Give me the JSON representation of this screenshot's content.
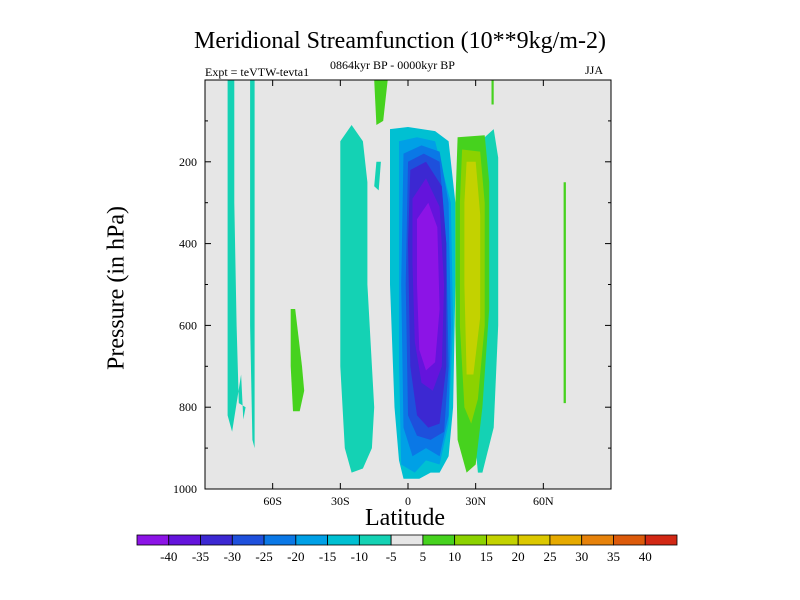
{
  "figure": {
    "title": "Meridional Streamfunction (10**9kg/m-2)",
    "period": "0864kyr BP - 0000kyr BP",
    "expt": "Expt = teVTW-tevta1",
    "season": "JJA"
  },
  "chart_data": {
    "type": "heatmap",
    "title": "Meridional Streamfunction (10**9kg/m-2)",
    "xlabel": "Latitude",
    "ylabel": "Pressure (in hPa)",
    "xlim": [
      -90,
      90
    ],
    "ylim": [
      1000,
      0
    ],
    "x_ticks": [
      {
        "value": -60,
        "label": "60S"
      },
      {
        "value": -30,
        "label": "30S"
      },
      {
        "value": 0,
        "label": "0"
      },
      {
        "value": 30,
        "label": "30N"
      },
      {
        "value": 60,
        "label": "60N"
      }
    ],
    "y_ticks": [
      {
        "value": 200,
        "label": "200"
      },
      {
        "value": 400,
        "label": "400"
      },
      {
        "value": 600,
        "label": "600"
      },
      {
        "value": 800,
        "label": "800"
      },
      {
        "value": 1000,
        "label": "1000"
      }
    ],
    "colorbar": {
      "levels": [
        -40,
        -35,
        -30,
        -25,
        -20,
        -15,
        -10,
        -5,
        5,
        10,
        15,
        20,
        25,
        30,
        35,
        40
      ],
      "colors": [
        "#8c14e6",
        "#6414dc",
        "#3c28d2",
        "#1e50dc",
        "#0a78e6",
        "#00a0e6",
        "#00c0d2",
        "#14d2b4",
        "#e6e6e6",
        "#46d21e",
        "#8cd200",
        "#c3d200",
        "#dcc800",
        "#e6aa00",
        "#e6820a",
        "#dc5a0a",
        "#d22814"
      ],
      "label_values": [
        "-40",
        "-35",
        "-30",
        "-25",
        "-20",
        "-15",
        "-10",
        "-5",
        "5",
        "10",
        "15",
        "20",
        "25",
        "30",
        "35",
        "40"
      ]
    },
    "regions": [
      {
        "name": "upper-band-1",
        "level": -5,
        "pts": [
          [
            -80,
            0
          ],
          [
            -77,
            0
          ],
          [
            -77,
            300
          ],
          [
            -76,
            600
          ],
          [
            -75,
            790
          ],
          [
            -72,
            800
          ],
          [
            -73,
            830
          ],
          [
            -74,
            720
          ],
          [
            -78,
            860
          ],
          [
            -80,
            820
          ],
          [
            -80,
            400
          ]
        ]
      },
      {
        "name": "upper-band-2",
        "level": -5,
        "pts": [
          [
            -70,
            0
          ],
          [
            -68,
            0
          ],
          [
            -68,
            400
          ],
          [
            -68,
            800
          ],
          [
            -68,
            900
          ],
          [
            -69,
            880
          ],
          [
            -70,
            600
          ]
        ]
      },
      {
        "name": "southern-cell",
        "level": -5,
        "pts": [
          [
            -30,
            150
          ],
          [
            -25,
            110
          ],
          [
            -20,
            150
          ],
          [
            -18,
            250
          ],
          [
            -18,
            500
          ],
          [
            -15,
            800
          ],
          [
            -16,
            900
          ],
          [
            -20,
            950
          ],
          [
            -25,
            960
          ],
          [
            -28,
            900
          ],
          [
            -30,
            700
          ],
          [
            -30,
            400
          ]
        ]
      },
      {
        "name": "south-patch-a",
        "level": -5,
        "pts": [
          [
            -14,
            200
          ],
          [
            -12,
            200
          ],
          [
            -13,
            270
          ],
          [
            -15,
            260
          ]
        ]
      },
      {
        "name": "south-patch-b",
        "level": -5,
        "pts": [
          [
            -6,
            740
          ],
          [
            -5,
            740
          ],
          [
            -5,
            800
          ],
          [
            -6,
            790
          ]
        ]
      },
      {
        "name": "northern-cell-west",
        "level": -5,
        "pts": [
          [
            -36,
            820
          ],
          [
            -35,
            800
          ]
        ]
      },
      {
        "name": "north-cell-east",
        "level": -5,
        "pts": [
          [
            38,
            120
          ],
          [
            40,
            190
          ],
          [
            40,
            600
          ],
          [
            38,
            850
          ],
          [
            33,
            960
          ],
          [
            31,
            960
          ],
          [
            30,
            900
          ],
          [
            28,
            700
          ],
          [
            28,
            300
          ],
          [
            30,
            160
          ]
        ]
      },
      {
        "name": "eq-cell-outer",
        "level": -10,
        "pts": [
          [
            -8,
            120
          ],
          [
            0,
            115
          ],
          [
            12,
            125
          ],
          [
            18,
            150
          ],
          [
            21,
            300
          ],
          [
            21,
            500
          ],
          [
            20,
            800
          ],
          [
            18,
            920
          ],
          [
            14,
            960
          ],
          [
            10,
            960
          ],
          [
            5,
            975
          ],
          [
            -2,
            975
          ],
          [
            -4,
            930
          ],
          [
            -6,
            800
          ],
          [
            -8,
            500
          ]
        ]
      },
      {
        "name": "eq-cell-m15",
        "level": -15,
        "pts": [
          [
            -4,
            150
          ],
          [
            4,
            140
          ],
          [
            12,
            150
          ],
          [
            19,
            300
          ],
          [
            20,
            600
          ],
          [
            18,
            840
          ],
          [
            14,
            940
          ],
          [
            8,
            930
          ],
          [
            3,
            960
          ],
          [
            -3,
            940
          ],
          [
            -4,
            700
          ],
          [
            -4,
            300
          ]
        ]
      },
      {
        "name": "eq-cell-m20",
        "level": -20,
        "pts": [
          [
            -2,
            180
          ],
          [
            6,
            160
          ],
          [
            14,
            175
          ],
          [
            18,
            300
          ],
          [
            19,
            600
          ],
          [
            18,
            820
          ],
          [
            14,
            920
          ],
          [
            8,
            900
          ],
          [
            2,
            920
          ],
          [
            -2,
            850
          ],
          [
            -3,
            500
          ]
        ]
      },
      {
        "name": "eq-cell-m25",
        "level": -25,
        "pts": [
          [
            0,
            200
          ],
          [
            7,
            180
          ],
          [
            14,
            200
          ],
          [
            17,
            400
          ],
          [
            18,
            700
          ],
          [
            16,
            860
          ],
          [
            10,
            880
          ],
          [
            4,
            870
          ],
          [
            0,
            820
          ],
          [
            -1,
            500
          ]
        ]
      },
      {
        "name": "eq-cell-m30",
        "level": -30,
        "pts": [
          [
            1,
            220
          ],
          [
            8,
            200
          ],
          [
            15,
            260
          ],
          [
            17,
            400
          ],
          [
            17,
            700
          ],
          [
            14,
            840
          ],
          [
            9,
            850
          ],
          [
            4,
            820
          ],
          [
            1,
            700
          ],
          [
            0,
            400
          ]
        ]
      },
      {
        "name": "eq-cell-m35",
        "level": -35,
        "pts": [
          [
            2,
            290
          ],
          [
            8,
            240
          ],
          [
            14,
            310
          ],
          [
            16,
            500
          ],
          [
            15,
            700
          ],
          [
            11,
            760
          ],
          [
            6,
            740
          ],
          [
            3,
            640
          ],
          [
            2,
            450
          ]
        ]
      },
      {
        "name": "eq-cell-m40",
        "level": -40,
        "pts": [
          [
            4,
            340
          ],
          [
            9,
            300
          ],
          [
            13,
            360
          ],
          [
            14,
            560
          ],
          [
            12,
            690
          ],
          [
            8,
            710
          ],
          [
            5,
            660
          ],
          [
            4,
            500
          ]
        ]
      },
      {
        "name": "cap-north-a",
        "level": 5,
        "pts": [
          [
            -15,
            0
          ],
          [
            -9,
            0
          ],
          [
            -11,
            100
          ],
          [
            -14,
            110
          ]
        ]
      },
      {
        "name": "cap-north-b",
        "level": 5,
        "pts": [
          [
            37,
            0
          ],
          [
            38,
            0
          ],
          [
            38,
            60
          ],
          [
            37,
            60
          ]
        ]
      },
      {
        "name": "nh-pos-5",
        "level": 5,
        "pts": [
          [
            22,
            140
          ],
          [
            34,
            135
          ],
          [
            36,
            250
          ],
          [
            36,
            560
          ],
          [
            33,
            800
          ],
          [
            30,
            940
          ],
          [
            26,
            960
          ],
          [
            22,
            880
          ],
          [
            21,
            600
          ],
          [
            21,
            300
          ]
        ]
      },
      {
        "name": "nh-pos-10",
        "level": 10,
        "pts": [
          [
            24,
            170
          ],
          [
            32,
            175
          ],
          [
            34,
            300
          ],
          [
            34,
            600
          ],
          [
            31,
            780
          ],
          [
            28,
            840
          ],
          [
            25,
            800
          ],
          [
            23,
            600
          ],
          [
            23,
            300
          ]
        ]
      },
      {
        "name": "nh-pos-15",
        "level": 15,
        "pts": [
          [
            26,
            200
          ],
          [
            30,
            200
          ],
          [
            32,
            330
          ],
          [
            32,
            580
          ],
          [
            29,
            720
          ],
          [
            26,
            720
          ],
          [
            25,
            500
          ],
          [
            25,
            300
          ]
        ]
      },
      {
        "name": "sh-pos",
        "level": 5,
        "pts": [
          [
            -52,
            560
          ],
          [
            -50,
            560
          ],
          [
            -47,
            700
          ],
          [
            -46,
            760
          ],
          [
            -48,
            810
          ],
          [
            -51,
            810
          ],
          [
            -52,
            700
          ]
        ]
      },
      {
        "name": "nh-thin-line",
        "level": 5,
        "pts": [
          [
            69,
            250
          ],
          [
            70,
            250
          ],
          [
            70,
            790
          ],
          [
            69,
            790
          ]
        ]
      }
    ]
  }
}
